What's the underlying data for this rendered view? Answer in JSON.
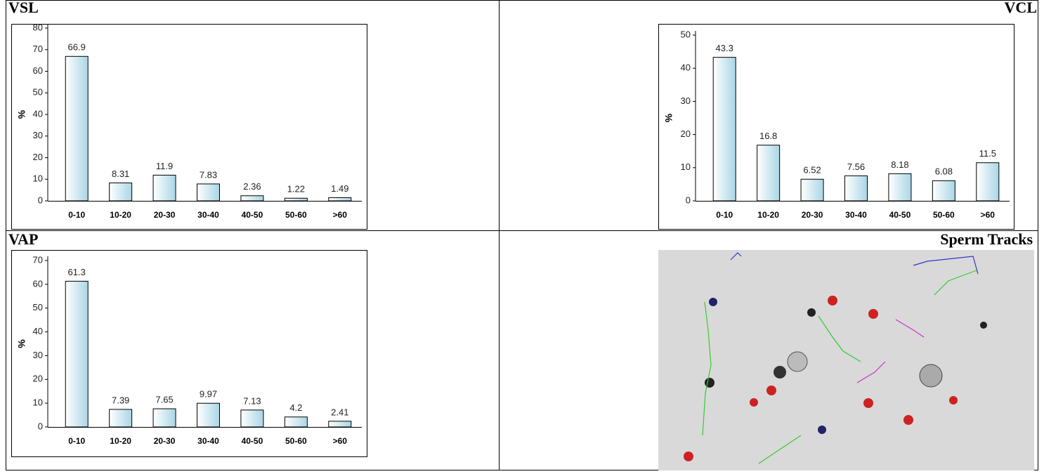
{
  "chart_data": [
    {
      "type": "bar",
      "title": "VSL",
      "y_label": "%",
      "categories": [
        "0-10",
        "10-20",
        "20-30",
        "30-40",
        "40-50",
        "50-60",
        ">60"
      ],
      "values": [
        66.9,
        8.31,
        11.9,
        7.83,
        2.36,
        1.22,
        1.49
      ],
      "ylim": [
        0,
        80
      ],
      "yticks": [
        0,
        10,
        20,
        30,
        40,
        50,
        60,
        70,
        80
      ],
      "color": "#a9d6e5"
    },
    {
      "type": "bar",
      "title": "VCL",
      "y_label": "%",
      "categories": [
        "0-10",
        "10-20",
        "20-30",
        "30-40",
        "40-50",
        "50-60",
        ">60"
      ],
      "values": [
        43.3,
        16.8,
        6.52,
        7.56,
        8.18,
        6.08,
        11.5
      ],
      "ylim": [
        0,
        50
      ],
      "yticks": [
        0,
        10,
        20,
        30,
        40,
        50
      ],
      "color": "#a9d6e5"
    },
    {
      "type": "bar",
      "title": "VAP",
      "y_label": "%",
      "categories": [
        "0-10",
        "10-20",
        "20-30",
        "30-40",
        "40-50",
        "50-60",
        ">60"
      ],
      "values": [
        61.3,
        7.39,
        7.65,
        9.97,
        7.13,
        4.2,
        2.41
      ],
      "ylim": [
        0,
        70
      ],
      "yticks": [
        0,
        10,
        20,
        30,
        40,
        50,
        60,
        70
      ],
      "color": "#a9d6e5"
    }
  ],
  "image": {
    "title": "Sperm Tracks"
  }
}
